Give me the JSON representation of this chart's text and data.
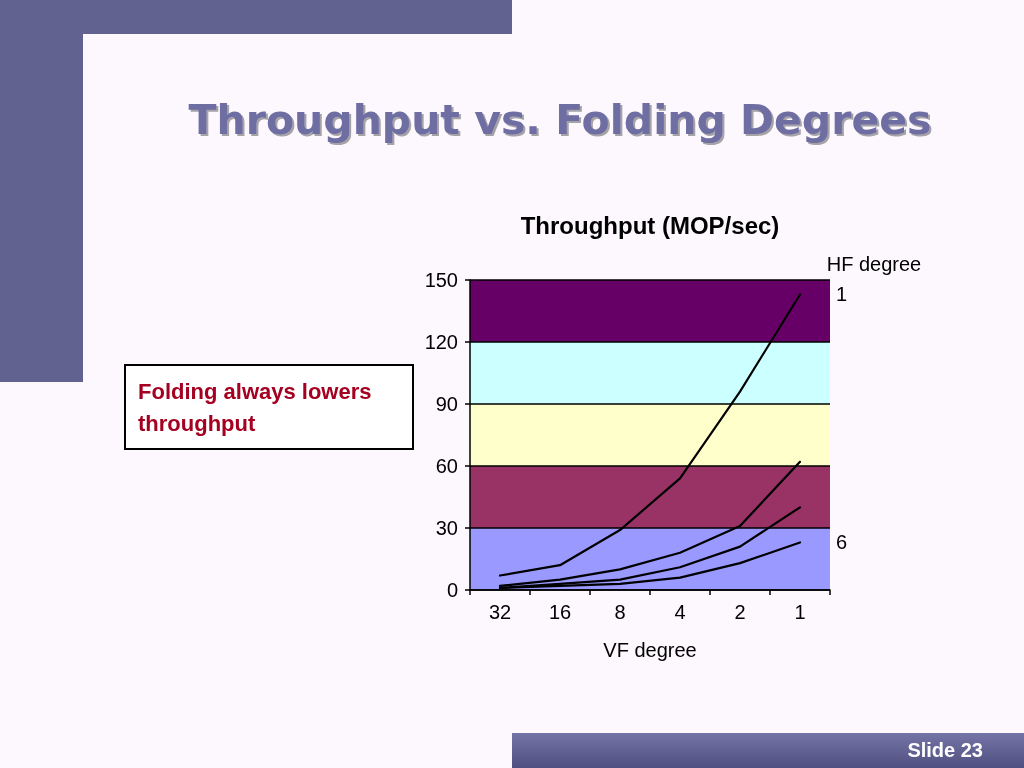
{
  "chart_data": {
    "type": "line",
    "title": "Throughput vs. Folding Degrees",
    "subtitle": "Throughput (MOP/sec)",
    "xlabel": "VF degree",
    "legend_title": "HF degree",
    "categories": [
      "32",
      "16",
      "8",
      "4",
      "2",
      "1"
    ],
    "series": [
      {
        "name": "1",
        "color": "#000000",
        "values": [
          7,
          12,
          29,
          54,
          96,
          143
        ]
      },
      {
        "color": "#000000",
        "values": [
          2,
          5,
          10,
          18,
          31,
          62
        ]
      },
      {
        "color": "#000000",
        "values": [
          1,
          3,
          5,
          11,
          21,
          40
        ]
      },
      {
        "name": "6",
        "color": "#000000",
        "values": [
          1,
          2,
          3,
          6,
          13,
          23
        ]
      }
    ],
    "ylim": [
      0,
      150
    ],
    "yticks": [
      0,
      30,
      60,
      90,
      120,
      150
    ],
    "grid": "y",
    "marker": "none",
    "line_style": "solid",
    "bands": [
      {
        "axis": "y",
        "from": 0,
        "to": 30,
        "color": "#9999ff"
      },
      {
        "axis": "y",
        "from": 30,
        "to": 60,
        "color": "#993366"
      },
      {
        "axis": "y",
        "from": 60,
        "to": 90,
        "color": "#ffffcc"
      },
      {
        "axis": "y",
        "from": 90,
        "to": 120,
        "color": "#ccffff"
      },
      {
        "axis": "y",
        "from": 120,
        "to": 150,
        "color": "#660066"
      }
    ],
    "annotations": [
      "Folding always lowers throughput",
      "Slide 23"
    ]
  }
}
